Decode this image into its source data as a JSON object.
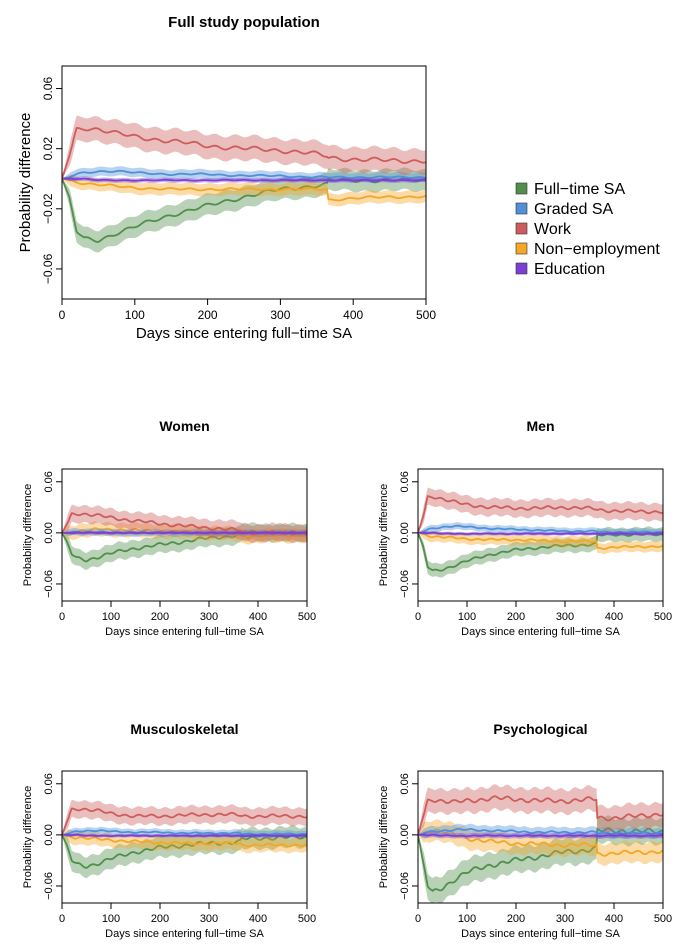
{
  "colors": {
    "full_time_sa": "#4f8f4a",
    "graded_sa": "#4f90d8",
    "work": "#cd5c5c",
    "non_employment": "#f5a623",
    "education": "#7b3fd6"
  },
  "legend": {
    "placement": "right of top panel",
    "items": [
      {
        "key": "full_time_sa",
        "label": "Full−time SA"
      },
      {
        "key": "graded_sa",
        "label": "Graded SA"
      },
      {
        "key": "work",
        "label": "Work"
      },
      {
        "key": "non_employment",
        "label": "Non−employment"
      },
      {
        "key": "education",
        "label": "Education"
      }
    ]
  },
  "chart_data": [
    {
      "type": "line",
      "title": "Full study population",
      "xlabel": "Days since entering full−time SA",
      "ylabel": "Probability difference",
      "xlim": [
        0,
        500
      ],
      "ylim": [
        -0.08,
        0.075
      ],
      "xticks": [
        0,
        100,
        200,
        300,
        400,
        500
      ],
      "yticks": [
        -0.06,
        -0.02,
        0.02,
        0.06
      ],
      "ytick_labels": [
        "−0.06",
        "−0.02",
        "0.02",
        "0.06"
      ],
      "grid": false,
      "x": [
        0,
        10,
        20,
        30,
        50,
        75,
        100,
        150,
        200,
        250,
        300,
        340,
        365,
        366,
        400,
        450,
        500
      ],
      "series": [
        {
          "name": "Full−time SA",
          "key": "full_time_sa",
          "values": [
            0,
            -0.012,
            -0.035,
            -0.04,
            -0.041,
            -0.036,
            -0.032,
            -0.024,
            -0.018,
            -0.012,
            -0.007,
            -0.005,
            -0.004,
            -0.001,
            -0.001,
            -0.001,
            -0.001
          ],
          "band": 0.007
        },
        {
          "name": "Graded SA",
          "key": "graded_sa",
          "values": [
            0,
            0.001,
            0.003,
            0.004,
            0.005,
            0.005,
            0.004,
            0.003,
            0.003,
            0.002,
            0.002,
            0.001,
            0.001,
            0.001,
            0.001,
            0.001,
            0.001
          ],
          "band": 0.003
        },
        {
          "name": "Work",
          "key": "work",
          "values": [
            0,
            0.015,
            0.033,
            0.034,
            0.033,
            0.03,
            0.028,
            0.025,
            0.022,
            0.02,
            0.019,
            0.017,
            0.015,
            0.014,
            0.013,
            0.012,
            0.012
          ],
          "band": 0.008
        },
        {
          "name": "Non−employment",
          "key": "non_employment",
          "values": [
            0,
            -0.001,
            -0.002,
            -0.003,
            -0.004,
            -0.005,
            -0.006,
            -0.007,
            -0.007,
            -0.007,
            -0.007,
            -0.007,
            -0.007,
            -0.014,
            -0.013,
            -0.012,
            -0.012
          ],
          "band": 0.004
        },
        {
          "name": "Education",
          "key": "education",
          "values": [
            0,
            0.0,
            0.0,
            0.0,
            -0.001,
            -0.001,
            -0.001,
            -0.001,
            -0.001,
            -0.001,
            -0.001,
            -0.001,
            -0.001,
            -0.001,
            -0.001,
            -0.001,
            -0.001
          ],
          "band": 0.0015
        }
      ]
    },
    {
      "type": "line",
      "title": "Women",
      "xlabel": "Days since entering full−time SA",
      "ylabel": "Probability difference",
      "xlim": [
        0,
        500
      ],
      "ylim": [
        -0.08,
        0.075
      ],
      "xticks": [
        0,
        100,
        200,
        300,
        400,
        500
      ],
      "yticks": [
        -0.06,
        0.0,
        0.06
      ],
      "ytick_labels": [
        "−0.06",
        "0.00",
        "0.06"
      ],
      "grid": false,
      "x": [
        0,
        10,
        20,
        30,
        50,
        75,
        100,
        150,
        200,
        250,
        300,
        340,
        365,
        366,
        400,
        450,
        500
      ],
      "series": [
        {
          "name": "Full−time SA",
          "key": "full_time_sa",
          "values": [
            0,
            -0.01,
            -0.025,
            -0.03,
            -0.032,
            -0.028,
            -0.024,
            -0.018,
            -0.014,
            -0.01,
            -0.006,
            -0.004,
            -0.003,
            0.0,
            0.001,
            0.0,
            0.0
          ],
          "band": 0.01
        },
        {
          "name": "Graded SA",
          "key": "graded_sa",
          "values": [
            0,
            0.0,
            0.001,
            0.001,
            0.001,
            0.001,
            0.0,
            0.0,
            0.0,
            0.0,
            0.0,
            0.0,
            0.0,
            0.0,
            0.0,
            0.0,
            0.0
          ],
          "band": 0.004
        },
        {
          "name": "Work",
          "key": "work",
          "values": [
            0,
            0.01,
            0.022,
            0.023,
            0.022,
            0.02,
            0.018,
            0.014,
            0.011,
            0.008,
            0.006,
            0.004,
            0.003,
            0.001,
            0.0,
            0.0,
            0.0
          ],
          "band": 0.01
        },
        {
          "name": "Non−employment",
          "key": "non_employment",
          "values": [
            0,
            0.0,
            0.001,
            0.002,
            0.003,
            0.004,
            0.004,
            0.003,
            0.002,
            0.001,
            0.0,
            -0.001,
            -0.002,
            -0.004,
            -0.004,
            -0.003,
            -0.003
          ],
          "band": 0.008
        },
        {
          "name": "Education",
          "key": "education",
          "values": [
            0,
            0.0,
            0.0,
            0.0,
            0.0,
            0.0,
            0.0,
            0.0,
            0.0,
            0.0,
            0.0,
            0.0,
            0.0,
            0.0,
            0.0,
            0.0,
            0.0
          ],
          "band": 0.002
        }
      ]
    },
    {
      "type": "line",
      "title": "Men",
      "xlabel": "Days since entering full−time SA",
      "ylabel": "Probability difference",
      "xlim": [
        0,
        500
      ],
      "ylim": [
        -0.08,
        0.075
      ],
      "xticks": [
        0,
        100,
        200,
        300,
        400,
        500
      ],
      "yticks": [
        -0.06,
        0.0,
        0.06
      ],
      "ytick_labels": [
        "−0.06",
        "0.00",
        "0.06"
      ],
      "grid": false,
      "x": [
        0,
        10,
        20,
        30,
        50,
        75,
        100,
        150,
        200,
        250,
        300,
        340,
        365,
        366,
        400,
        450,
        500
      ],
      "series": [
        {
          "name": "Full−time SA",
          "key": "full_time_sa",
          "values": [
            0,
            -0.015,
            -0.04,
            -0.045,
            -0.043,
            -0.038,
            -0.033,
            -0.025,
            -0.02,
            -0.017,
            -0.015,
            -0.014,
            -0.013,
            -0.003,
            -0.002,
            -0.002,
            -0.002
          ],
          "band": 0.008
        },
        {
          "name": "Graded SA",
          "key": "graded_sa",
          "values": [
            0,
            0.001,
            0.004,
            0.005,
            0.007,
            0.008,
            0.007,
            0.005,
            0.004,
            0.003,
            0.002,
            0.002,
            0.002,
            0.001,
            0.001,
            0.001,
            0.001
          ],
          "band": 0.004
        },
        {
          "name": "Work",
          "key": "work",
          "values": [
            0,
            0.018,
            0.042,
            0.043,
            0.04,
            0.036,
            0.033,
            0.03,
            0.029,
            0.029,
            0.03,
            0.029,
            0.028,
            0.027,
            0.026,
            0.025,
            0.025
          ],
          "band": 0.01
        },
        {
          "name": "Non−employment",
          "key": "non_employment",
          "values": [
            0,
            -0.001,
            -0.003,
            -0.004,
            -0.005,
            -0.006,
            -0.007,
            -0.008,
            -0.008,
            -0.009,
            -0.01,
            -0.01,
            -0.01,
            -0.018,
            -0.017,
            -0.016,
            -0.016
          ],
          "band": 0.006
        },
        {
          "name": "Education",
          "key": "education",
          "values": [
            0,
            0.0,
            0.0,
            0.0,
            -0.001,
            -0.001,
            -0.001,
            -0.001,
            -0.001,
            -0.001,
            -0.001,
            -0.001,
            -0.001,
            -0.001,
            -0.001,
            -0.001,
            -0.001
          ],
          "band": 0.002
        }
      ]
    },
    {
      "type": "line",
      "title": "Musculoskeletal",
      "xlabel": "Days since entering full−time SA",
      "ylabel": "Probability difference",
      "xlim": [
        0,
        500
      ],
      "ylim": [
        -0.08,
        0.075
      ],
      "xticks": [
        0,
        100,
        200,
        300,
        400,
        500
      ],
      "yticks": [
        -0.06,
        0.0,
        0.06
      ],
      "ytick_labels": [
        "−0.06",
        "0.00",
        "0.06"
      ],
      "grid": false,
      "x": [
        0,
        10,
        20,
        30,
        50,
        75,
        100,
        150,
        200,
        250,
        300,
        340,
        365,
        366,
        400,
        450,
        500
      ],
      "series": [
        {
          "name": "Full−time SA",
          "key": "full_time_sa",
          "values": [
            0,
            -0.012,
            -0.03,
            -0.035,
            -0.037,
            -0.033,
            -0.028,
            -0.02,
            -0.015,
            -0.012,
            -0.01,
            -0.009,
            -0.008,
            -0.005,
            -0.004,
            -0.003,
            -0.003
          ],
          "band": 0.012
        },
        {
          "name": "Graded SA",
          "key": "graded_sa",
          "values": [
            0,
            0.001,
            0.003,
            0.004,
            0.005,
            0.005,
            0.004,
            0.003,
            0.003,
            0.002,
            0.002,
            0.002,
            0.002,
            0.001,
            0.001,
            0.001,
            0.001
          ],
          "band": 0.004
        },
        {
          "name": "Work",
          "key": "work",
          "values": [
            0,
            0.015,
            0.03,
            0.031,
            0.03,
            0.028,
            0.025,
            0.022,
            0.022,
            0.023,
            0.024,
            0.024,
            0.023,
            0.022,
            0.022,
            0.022,
            0.022
          ],
          "band": 0.01
        },
        {
          "name": "Non−employment",
          "key": "non_employment",
          "values": [
            0,
            -0.001,
            -0.002,
            -0.003,
            -0.004,
            -0.005,
            -0.006,
            -0.008,
            -0.009,
            -0.01,
            -0.01,
            -0.01,
            -0.01,
            -0.012,
            -0.012,
            -0.012,
            -0.012
          ],
          "band": 0.008
        },
        {
          "name": "Education",
          "key": "education",
          "values": [
            0,
            0.0,
            0.0,
            0.0,
            -0.001,
            -0.001,
            -0.001,
            -0.001,
            -0.001,
            -0.001,
            -0.001,
            -0.001,
            -0.001,
            -0.001,
            -0.001,
            -0.001,
            -0.001
          ],
          "band": 0.002
        }
      ]
    },
    {
      "type": "line",
      "title": "Psychological",
      "xlabel": "Days since entering full−time SA",
      "ylabel": "Probability difference",
      "xlim": [
        0,
        500
      ],
      "ylim": [
        -0.08,
        0.075
      ],
      "xticks": [
        0,
        100,
        200,
        300,
        400,
        500
      ],
      "yticks": [
        -0.06,
        0.0,
        0.06
      ],
      "ytick_labels": [
        "−0.06",
        "0.00",
        "0.06"
      ],
      "grid": false,
      "x": [
        0,
        10,
        20,
        30,
        50,
        75,
        100,
        150,
        200,
        250,
        300,
        340,
        365,
        366,
        400,
        450,
        500
      ],
      "series": [
        {
          "name": "Full−time SA",
          "key": "full_time_sa",
          "values": [
            0,
            -0.03,
            -0.06,
            -0.068,
            -0.062,
            -0.052,
            -0.044,
            -0.035,
            -0.03,
            -0.025,
            -0.02,
            -0.018,
            -0.016,
            0.005,
            0.005,
            0.004,
            0.004
          ],
          "band": 0.015
        },
        {
          "name": "Graded SA",
          "key": "graded_sa",
          "values": [
            0,
            0.001,
            0.003,
            0.004,
            0.005,
            0.006,
            0.006,
            0.005,
            0.004,
            0.003,
            0.003,
            0.003,
            0.003,
            0.002,
            0.002,
            0.002,
            0.002
          ],
          "band": 0.006
        },
        {
          "name": "Work",
          "key": "work",
          "values": [
            0,
            0.02,
            0.04,
            0.042,
            0.04,
            0.038,
            0.04,
            0.043,
            0.042,
            0.04,
            0.04,
            0.041,
            0.042,
            0.02,
            0.02,
            0.022,
            0.025
          ],
          "band": 0.014
        },
        {
          "name": "Non−employment",
          "key": "non_employment",
          "values": [
            0,
            0.002,
            0.005,
            0.006,
            0.004,
            0.0,
            -0.004,
            -0.008,
            -0.01,
            -0.011,
            -0.012,
            -0.012,
            -0.012,
            -0.022,
            -0.022,
            -0.02,
            -0.02
          ],
          "band": 0.012
        },
        {
          "name": "Education",
          "key": "education",
          "values": [
            0,
            0.0,
            0.0,
            0.0,
            -0.001,
            -0.001,
            -0.001,
            -0.001,
            -0.001,
            -0.001,
            -0.001,
            -0.001,
            -0.001,
            -0.001,
            -0.001,
            -0.001,
            -0.001
          ],
          "band": 0.003
        }
      ]
    }
  ]
}
